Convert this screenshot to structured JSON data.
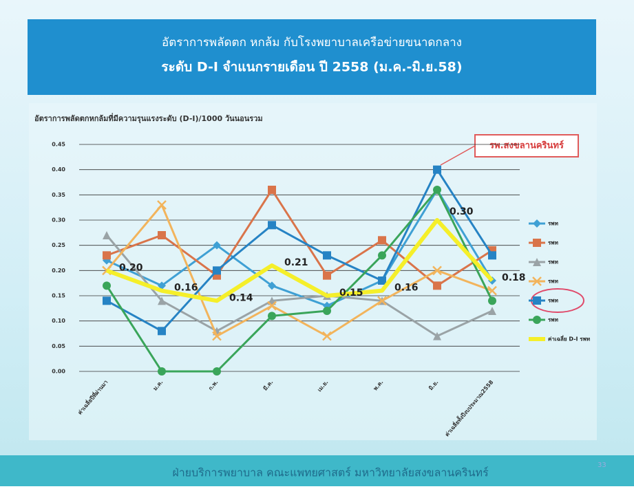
{
  "chart_data": {
    "type": "line",
    "title_line1": "อัตราการพลัดตก หกล้ม กับโรงพยาบาลเครือข่ายขนาดกลาง",
    "title_line2": "ระดับ D-I  จำแนกรายเดือน ปี 2558 (ม.ค.-มิ.ย.58)",
    "y_label": "อัตราการพลัดตกหกล้มที่มีความรุนแรงระดับ (D-I)/1000 วันนอนรวม",
    "annotation": "รพ.สงขลานครินทร์",
    "footer": "ฝ่ายบริการพยาบาล คณะแพทยศาสตร์ มหาวิทยาลัยสงขลานครินทร์",
    "page_number": "33",
    "categories": [
      "ค่าเฉลี่ยปีที่ผ่านมา",
      "ม.ค.",
      "ก.พ.",
      "มี.ค.",
      "เม.ย.",
      "พ.ค.",
      "มิ.ย.",
      "ค่าเฉลี่ยทั้งปีงบประมาณ2558"
    ],
    "ylim": [
      0,
      0.45
    ],
    "yticks": [
      {
        "value": 0,
        "label": "0.00"
      },
      {
        "value": 0.05,
        "label": "0.05"
      },
      {
        "value": 0.1,
        "label": "0.10"
      },
      {
        "value": 0.15,
        "label": "0.15"
      },
      {
        "value": 0.2,
        "label": "0.20"
      },
      {
        "value": 0.25,
        "label": "0.25"
      },
      {
        "value": 0.3,
        "label": "0.30"
      },
      {
        "value": 0.35,
        "label": "0.35"
      },
      {
        "value": 0.4,
        "label": "0.40"
      },
      {
        "value": 0.45,
        "label": "0.45"
      }
    ],
    "grid": true,
    "series": [
      {
        "name": "รพท",
        "color": "#3fa0d4",
        "marker": "diamond",
        "values": [
          0.22,
          0.17,
          0.25,
          0.17,
          0.13,
          0.18,
          0.36,
          0.18
        ]
      },
      {
        "name": "รพท",
        "color": "#d9744a",
        "marker": "square",
        "values": [
          0.23,
          0.27,
          0.19,
          0.36,
          0.19,
          0.26,
          0.17,
          0.24
        ]
      },
      {
        "name": "รพท",
        "color": "#9aa3a6",
        "marker": "triangle",
        "values": [
          0.27,
          0.14,
          0.08,
          0.14,
          0.15,
          0.14,
          0.07,
          0.12
        ]
      },
      {
        "name": "รพท",
        "color": "#f2b45c",
        "marker": "x",
        "values": [
          0.2,
          0.33,
          0.07,
          0.13,
          0.07,
          0.14,
          0.2,
          0.16
        ]
      },
      {
        "name": "รพท",
        "color": "#2683c4",
        "marker": "square",
        "values": [
          0.14,
          0.08,
          0.2,
          0.29,
          0.23,
          0.18,
          0.4,
          0.23
        ]
      },
      {
        "name": "รพท",
        "color": "#3aa55a",
        "marker": "circle",
        "values": [
          0.17,
          0,
          0,
          0.11,
          0.12,
          0.23,
          0.36,
          0.14
        ]
      },
      {
        "name": "ค่าเฉลี่ย D-I รพท",
        "color": "#f5ef2a",
        "marker": "none",
        "width": 6,
        "values": [
          0.2,
          0.16,
          0.14,
          0.21,
          0.15,
          0.16,
          0.3,
          0.18
        ],
        "value_labels": [
          "0.20",
          "0.16",
          "0.14",
          "0.21",
          "0.15",
          "0.16",
          "0.30",
          "0.18"
        ]
      }
    ]
  }
}
